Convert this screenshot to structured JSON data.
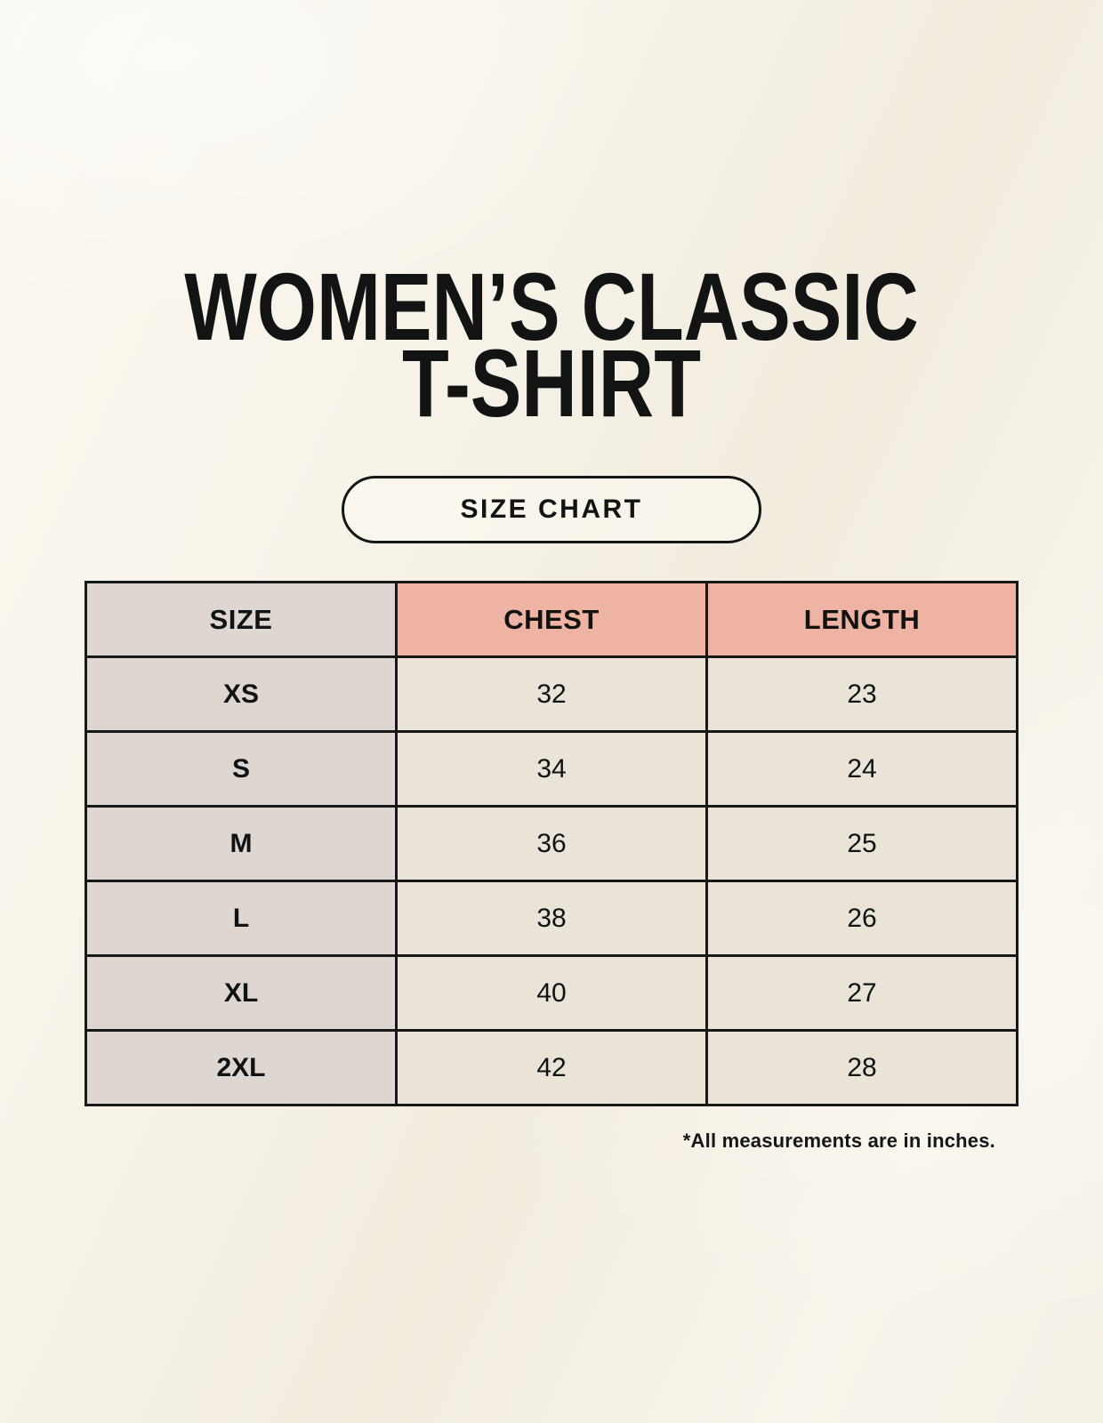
{
  "title": {
    "line1": "WOMEN’S CLASSIC",
    "line2": "T-SHIRT"
  },
  "badge": {
    "label": "SIZE CHART"
  },
  "size_table": {
    "columns": [
      "SIZE",
      "CHEST",
      "LENGTH"
    ],
    "rows": [
      {
        "size": "XS",
        "chest": "32",
        "length": "23"
      },
      {
        "size": "S",
        "chest": "34",
        "length": "24"
      },
      {
        "size": "M",
        "chest": "36",
        "length": "25"
      },
      {
        "size": "L",
        "chest": "38",
        "length": "26"
      },
      {
        "size": "XL",
        "chest": "40",
        "length": "27"
      },
      {
        "size": "2XL",
        "chest": "42",
        "length": "28"
      }
    ]
  },
  "footnote": "*All measurements are in inches.",
  "colors": {
    "background": "#F7F3E9",
    "table_border": "#181818",
    "size_column_bg": "#DED6D1",
    "measurement_header_bg": "#EEB3A2",
    "value_cell_bg": "#EAE3D8",
    "text": "#121212"
  },
  "chart_data": {
    "type": "table",
    "title": "WOMEN’S CLASSIC T-SHIRT",
    "subtitle": "SIZE CHART",
    "columns": [
      "SIZE",
      "CHEST",
      "LENGTH"
    ],
    "rows": [
      [
        "XS",
        32,
        23
      ],
      [
        "S",
        34,
        24
      ],
      [
        "M",
        36,
        25
      ],
      [
        "L",
        38,
        26
      ],
      [
        "XL",
        40,
        27
      ],
      [
        "2XL",
        42,
        28
      ]
    ],
    "units": "inches",
    "note": "*All measurements are in inches."
  }
}
